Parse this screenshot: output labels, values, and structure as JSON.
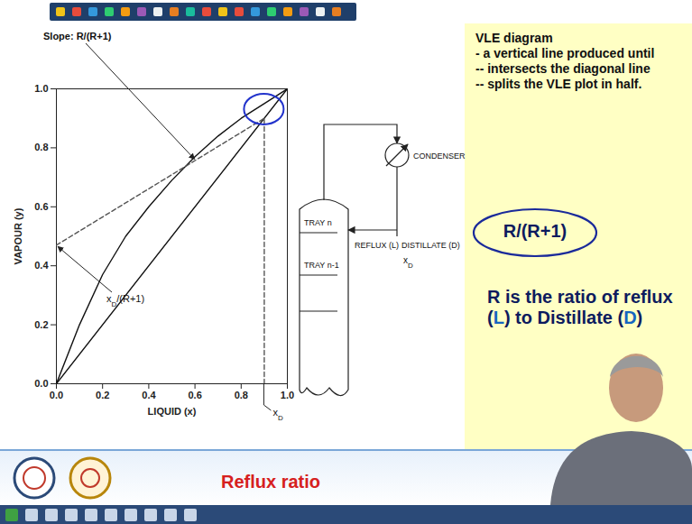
{
  "chart_data": {
    "type": "line",
    "x_label": "LIQUID (x)",
    "y_label": "VAPOUR (y)",
    "xlim": [
      0,
      1
    ],
    "ylim": [
      0,
      1
    ],
    "xticks": [
      {
        "value": 0,
        "label": "0.0"
      },
      0.2,
      0.4,
      0.6,
      0.8,
      {
        "value": 1,
        "label": "1.0"
      }
    ],
    "yticks": [
      {
        "value": 0,
        "label": "0.0"
      },
      0.2,
      0.4,
      0.6,
      0.8,
      {
        "value": 1,
        "label": "1.0"
      }
    ],
    "grid": false,
    "series": [
      {
        "color": "#111111",
        "line_style": "solid",
        "x": [
          0,
          0.1,
          0.2,
          0.3,
          0.4,
          0.5,
          0.6,
          0.7,
          0.8,
          0.9,
          1.0
        ],
        "values": [
          0,
          0.2,
          0.37,
          0.5,
          0.6,
          0.69,
          0.77,
          0.84,
          0.9,
          0.95,
          1.0
        ]
      },
      {
        "color": "#111111",
        "line_style": "solid",
        "x": [
          0,
          1
        ],
        "values": [
          0,
          1
        ]
      },
      {
        "color": "#555555",
        "line_style": "dashed",
        "x": [
          0,
          0.9
        ],
        "values": [
          0.47,
          0.9
        ]
      },
      {
        "color": "#555555",
        "line_style": "dashed",
        "x": [
          0.9,
          0.9
        ],
        "values": [
          0,
          0.9
        ]
      }
    ],
    "annotations": [
      {
        "text": "Slope: R/(R+1)",
        "x": 0.6,
        "y": 0.76
      },
      {
        "text": "xD/(R+1)",
        "x": 0,
        "y": 0.47
      },
      {
        "text": "xD",
        "x": 0.9,
        "y": 0
      }
    ]
  },
  "column": {
    "trays": [
      "TRAY n",
      "TRAY n-1"
    ],
    "condenser": "CONDENSER",
    "reflux": "REFLUX (L)",
    "distillate": "DISTILLATE (D)",
    "xd": "xD"
  },
  "notes": {
    "heading": "VLE diagram",
    "lines": [
      "- a vertical line produced until",
      "-- intersects the diagonal line",
      "-- splits the VLE plot in half."
    ],
    "formula": "R/(R+1)",
    "definition": "R is the ratio of reflux (L) to Distillate (D)"
  },
  "footer": {
    "title": "Reflux ratio"
  }
}
